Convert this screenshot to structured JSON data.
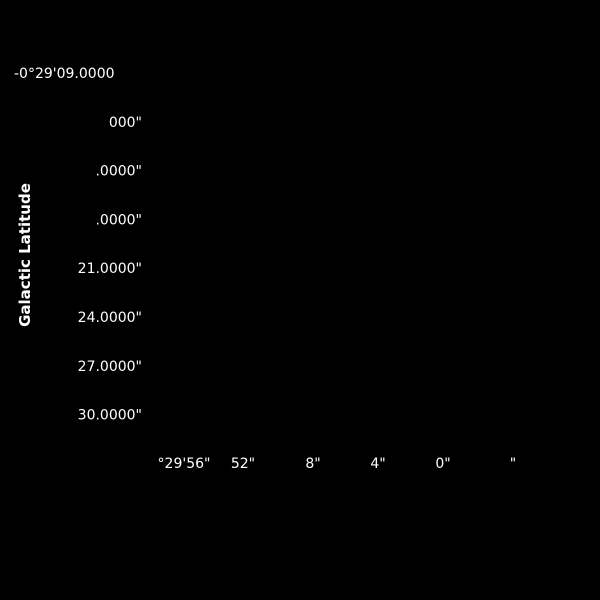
{
  "background_color": "#000000",
  "text_color": "#ffffff",
  "chart_data": {
    "type": "scatter",
    "coordinate_frame": "galactic",
    "series": [],
    "xlabel": "",
    "ylabel": "Galactic Latitude",
    "y_ticks": [
      "-0°29'09.0000",
      "000\"",
      ".0000\"",
      ".0000\"",
      "21.0000\"",
      "24.0000\"",
      "27.0000\"",
      "30.0000\""
    ],
    "x_ticks": [
      "°29'56\"",
      "52\"",
      "8\"",
      "4\"",
      "0\"",
      "\""
    ],
    "grid": false,
    "legend": "none"
  }
}
